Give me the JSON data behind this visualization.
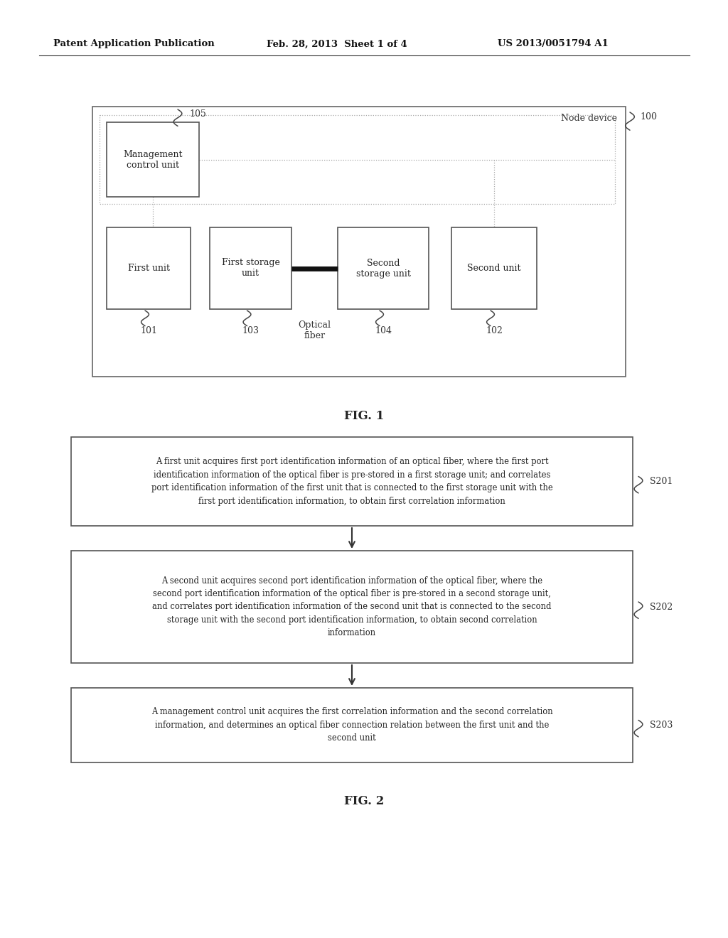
{
  "bg_color": "#ffffff",
  "header_left": "Patent Application Publication",
  "header_mid": "Feb. 28, 2013  Sheet 1 of 4",
  "header_right": "US 2013/0051794 A1",
  "fig1_label": "FIG. 1",
  "fig2_label": "FIG. 2",
  "node_device_label": "Node device",
  "ref100": "100",
  "ref101": "101",
  "ref102": "102",
  "ref103": "103",
  "ref104": "104",
  "ref105": "105",
  "optical_fiber_label": "Optical\nfiber",
  "mgmt_label": "Management\ncontrol unit",
  "first_unit_label": "First unit",
  "first_storage_label": "First storage\nunit",
  "second_storage_label": "Second\nstorage unit",
  "second_unit_label": "Second unit",
  "s201_label": "S201",
  "s202_label": "S202",
  "s203_label": "S203",
  "s201_text": "A first unit acquires first port identification information of an optical fiber, where the first port\nidentification information of the optical fiber is pre-stored in a first storage unit; and correlates\nport identification information of the first unit that is connected to the first storage unit with the\nfirst port identification information, to obtain first correlation information",
  "s202_text": "A second unit acquires second port identification information of the optical fiber, where the\nsecond port identification information of the optical fiber is pre-stored in a second storage unit,\nand correlates port identification information of the second unit that is connected to the second\nstorage unit with the second port identification information, to obtain second correlation\ninformation",
  "s203_text": "A management control unit acquires the first correlation information and the second correlation\ninformation, and determines an optical fiber connection relation between the first unit and the\nsecond unit"
}
